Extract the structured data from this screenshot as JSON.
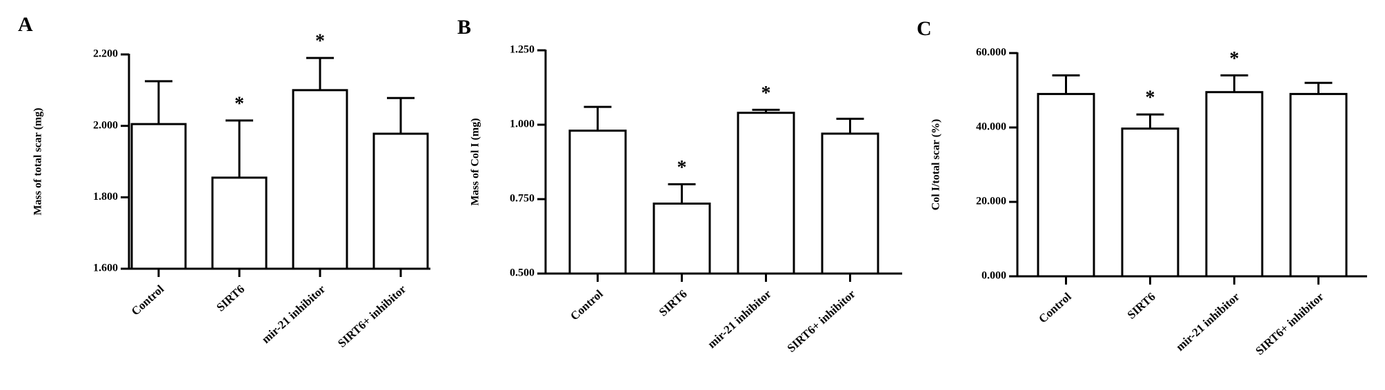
{
  "chart_data": [
    {
      "type": "bar",
      "panel_label": "A",
      "y_label": "Mass of total scar (mg)",
      "categories": [
        "Control",
        "SIRT6",
        "mir-21 inhibitor",
        "SIRT6+ inhibitor"
      ],
      "values": [
        2.005,
        1.855,
        2.1,
        1.978
      ],
      "errors": [
        0.12,
        0.16,
        0.09,
        0.1
      ],
      "significance": [
        null,
        "*",
        "*",
        null
      ],
      "color": "#ffffff",
      "ylim": [
        1.6,
        2.2
      ],
      "yticks": [
        {
          "value": 1.6,
          "label": "1.600"
        },
        {
          "value": 1.8,
          "label": "1.800"
        },
        {
          "value": 2.0,
          "label": "2.000"
        },
        {
          "value": 2.2,
          "label": "2.200"
        }
      ]
    },
    {
      "type": "bar",
      "panel_label": "B",
      "y_label": "Mass of Col I (mg)",
      "categories": [
        "Control",
        "SIRT6",
        "mir-21 inhibitor",
        "SIRT6+ inhibitor"
      ],
      "values": [
        0.98,
        0.735,
        1.04,
        0.97
      ],
      "errors": [
        0.08,
        0.065,
        0.01,
        0.05
      ],
      "significance": [
        null,
        "*",
        "*",
        null
      ],
      "color": "#ffffff",
      "ylim": [
        0.5,
        1.25
      ],
      "yticks": [
        {
          "value": 0.5,
          "label": "0.500"
        },
        {
          "value": 0.75,
          "label": "0.750"
        },
        {
          "value": 1.0,
          "label": "1.000"
        },
        {
          "value": 1.25,
          "label": "1.250"
        }
      ]
    },
    {
      "type": "bar",
      "panel_label": "C",
      "y_label": "Col I/total scar (%)",
      "categories": [
        "Control",
        "SIRT6",
        "mir-21 inhibitor",
        "SIRT6+ inhibitor"
      ],
      "values": [
        49,
        39.7,
        49.5,
        49
      ],
      "errors": [
        5,
        3.8,
        4.5,
        3
      ],
      "significance": [
        null,
        "*",
        "*",
        null
      ],
      "color": "#ffffff",
      "ylim": [
        0,
        60
      ],
      "yticks": [
        {
          "value": 0,
          "label": "0.000"
        },
        {
          "value": 20,
          "label": "20.000"
        },
        {
          "value": 40,
          "label": "40.000"
        },
        {
          "value": 60,
          "label": "60.000"
        }
      ]
    }
  ]
}
